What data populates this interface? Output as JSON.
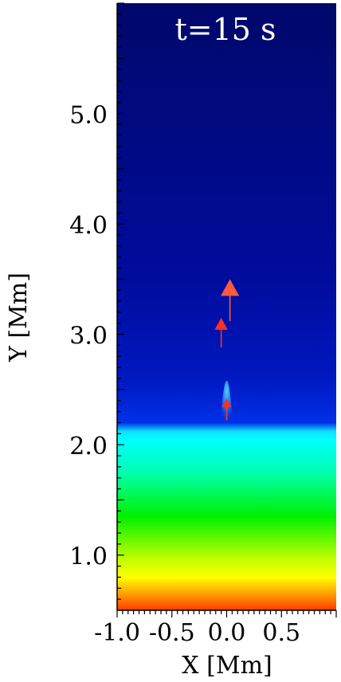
{
  "chart_data": {
    "type": "heatmap",
    "title": "t=15 s",
    "xlabel": "X [Mm]",
    "ylabel": "Y [Mm]",
    "xlim": [
      -1.0,
      1.0
    ],
    "ylim": [
      0.5,
      6.0
    ],
    "x_ticks": [
      {
        "value": -1.0,
        "label": "-1.0"
      },
      {
        "value": -0.5,
        "label": "-0.5"
      },
      {
        "value": 0.0,
        "label": "0.0"
      },
      {
        "value": 0.5,
        "label": "0.5"
      }
    ],
    "y_ticks": [
      {
        "value": 1.0,
        "label": "1.0"
      },
      {
        "value": 2.0,
        "label": "2.0"
      },
      {
        "value": 3.0,
        "label": "3.0"
      },
      {
        "value": 4.0,
        "label": "4.0"
      },
      {
        "value": 5.0,
        "label": "5.0"
      }
    ],
    "colormap": [
      {
        "y": 0.5,
        "color": "#ff3a00"
      },
      {
        "y": 0.62,
        "color": "#ff8c00"
      },
      {
        "y": 0.8,
        "color": "#ffff00"
      },
      {
        "y": 0.95,
        "color": "#c8ff00"
      },
      {
        "y": 1.35,
        "color": "#00f000"
      },
      {
        "y": 1.75,
        "color": "#00ffb0"
      },
      {
        "y": 2.05,
        "color": "#00ffff"
      },
      {
        "y": 2.12,
        "color": "#10e0ff"
      },
      {
        "y": 2.2,
        "color": "#0030e8"
      },
      {
        "y": 2.6,
        "color": "#0018c0"
      },
      {
        "y": 3.5,
        "color": "#000c9c"
      },
      {
        "y": 6.0,
        "color": "#00086a"
      }
    ],
    "transition_region": {
      "y": 2.15,
      "spike_x": 0.0,
      "spike_top_y": 2.58,
      "spike_half_width": 0.07
    },
    "velocity_arrows": [
      {
        "x": 0.03,
        "y_start": 3.12,
        "y_end": 3.5,
        "color": "#ff5a40"
      },
      {
        "x": -0.05,
        "y_start": 2.88,
        "y_end": 3.15,
        "color": "#ff3020"
      },
      {
        "x": 0.0,
        "y_start": 2.22,
        "y_end": 2.42,
        "color": "#ff3020"
      }
    ]
  },
  "colors": {
    "axis": "#000000",
    "title_text": "#ffffff",
    "arrow": "#ff4a30"
  }
}
